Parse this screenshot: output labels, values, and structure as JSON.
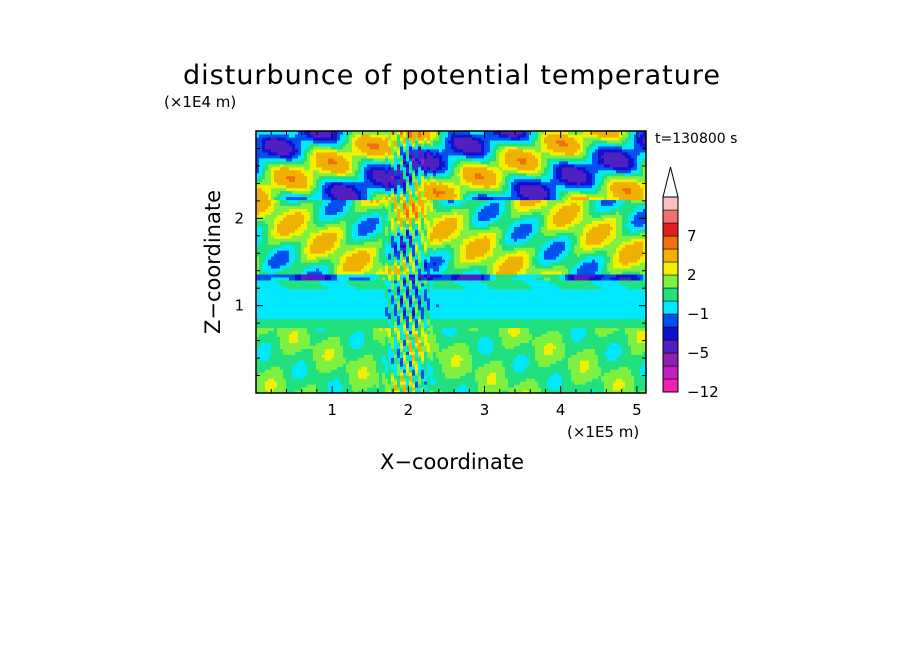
{
  "chart_data": {
    "type": "heatmap",
    "title": "disturbunce of potential temperature",
    "time_label": "t=130800 s",
    "xlabel": "X−coordinate",
    "ylabel": "Z−coordinate",
    "x_unit": "(×1E5 m)",
    "y_unit": "(×1E4 m)",
    "xlim": [
      0,
      5.12
    ],
    "ylim": [
      0,
      3.0
    ],
    "x_ticks": [
      {
        "value": 1,
        "label": "1"
      },
      {
        "value": 2,
        "label": "2"
      },
      {
        "value": 3,
        "label": "3"
      },
      {
        "value": 4,
        "label": "4"
      },
      {
        "value": 5,
        "label": "5"
      }
    ],
    "y_ticks": [
      {
        "value": 1,
        "label": "1"
      },
      {
        "value": 2,
        "label": "2"
      }
    ],
    "colorbar": {
      "levels": [
        -12,
        -9,
        -7,
        -5,
        -3,
        -2,
        -1,
        0,
        1,
        2,
        3,
        5,
        7,
        9,
        12
      ],
      "colors": [
        "#f020b0",
        "#c020c0",
        "#9020b0",
        "#5020c0",
        "#1010d0",
        "#0050f0",
        "#00e8ff",
        "#20e080",
        "#80f040",
        "#f0f000",
        "#f0b000",
        "#f07010",
        "#e02020",
        "#f07070",
        "#f8c0c0"
      ],
      "extend_max_color": "#ffffff",
      "labels": [
        {
          "value": -12,
          "label": "−12"
        },
        {
          "value": -5,
          "label": "−5"
        },
        {
          "value": -1,
          "label": "−1"
        },
        {
          "value": 2,
          "label": "2"
        },
        {
          "value": 7,
          "label": "7"
        }
      ]
    },
    "field_description_bands": [
      {
        "z_range": [
          0.0,
          0.8
        ],
        "dominant": "yellow/green (0 to 2)"
      },
      {
        "z_range": [
          0.8,
          1.3
        ],
        "dominant": "cyan (-1 to 0)"
      },
      {
        "z_range": [
          1.3,
          2.2
        ],
        "dominant": "yellow/green with orange and blue streaks"
      },
      {
        "z_range": [
          2.2,
          3.0
        ],
        "dominant": "orange, green, blue waves"
      }
    ]
  }
}
